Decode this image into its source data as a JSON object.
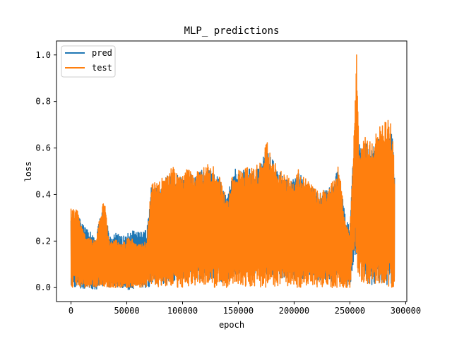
{
  "chart_data": {
    "type": "line",
    "title": "MLP_ predictions",
    "xlabel": "epoch",
    "ylabel": "loss",
    "xlim": [
      -13000,
      301000
    ],
    "ylim": [
      -0.06,
      1.06
    ],
    "x_ticks": [
      0,
      50000,
      100000,
      150000,
      200000,
      250000,
      300000
    ],
    "x_tick_labels": [
      "0",
      "50000",
      "100000",
      "150000",
      "200000",
      "250000",
      "300000"
    ],
    "y_ticks": [
      0.0,
      0.2,
      0.4,
      0.6,
      0.8,
      1.0
    ],
    "y_tick_labels": [
      "0.0",
      "0.2",
      "0.4",
      "0.6",
      "0.8",
      "1.0"
    ],
    "legend_position": "top-left",
    "x_max": 290000,
    "series": [
      {
        "name": "pred",
        "color": "#1f77b4",
        "envelope": [
          [
            0,
            0.0,
            0.33
          ],
          [
            5000,
            0.0,
            0.33
          ],
          [
            12000,
            -0.01,
            0.26
          ],
          [
            18000,
            0.0,
            0.24
          ],
          [
            22000,
            -0.02,
            0.22
          ],
          [
            26000,
            0.0,
            0.3
          ],
          [
            30000,
            0.0,
            0.38
          ],
          [
            34000,
            0.0,
            0.22
          ],
          [
            40000,
            0.0,
            0.24
          ],
          [
            46000,
            0.0,
            0.22
          ],
          [
            52000,
            -0.01,
            0.25
          ],
          [
            58000,
            0.0,
            0.24
          ],
          [
            64000,
            0.0,
            0.24
          ],
          [
            68000,
            0.0,
            0.25
          ],
          [
            72000,
            0.0,
            0.44
          ],
          [
            80000,
            0.0,
            0.44
          ],
          [
            86000,
            0.0,
            0.48
          ],
          [
            92000,
            0.02,
            0.5
          ],
          [
            98000,
            0.02,
            0.47
          ],
          [
            104000,
            0.03,
            0.5
          ],
          [
            110000,
            0.03,
            0.48
          ],
          [
            116000,
            0.03,
            0.5
          ],
          [
            122000,
            0.04,
            0.52
          ],
          [
            128000,
            0.03,
            0.5
          ],
          [
            134000,
            0.03,
            0.46
          ],
          [
            140000,
            0.0,
            0.38
          ],
          [
            146000,
            0.05,
            0.52
          ],
          [
            152000,
            0.05,
            0.5
          ],
          [
            158000,
            0.06,
            0.52
          ],
          [
            164000,
            0.05,
            0.5
          ],
          [
            170000,
            0.06,
            0.54
          ],
          [
            176000,
            0.05,
            0.61
          ],
          [
            180000,
            0.05,
            0.56
          ],
          [
            186000,
            0.04,
            0.5
          ],
          [
            192000,
            0.04,
            0.48
          ],
          [
            198000,
            0.03,
            0.46
          ],
          [
            204000,
            0.04,
            0.5
          ],
          [
            210000,
            0.03,
            0.46
          ],
          [
            216000,
            0.03,
            0.44
          ],
          [
            222000,
            0.03,
            0.4
          ],
          [
            228000,
            0.02,
            0.42
          ],
          [
            234000,
            0.02,
            0.44
          ],
          [
            240000,
            0.02,
            0.52
          ],
          [
            246000,
            0.01,
            0.3
          ],
          [
            250000,
            0.0,
            0.26
          ],
          [
            254000,
            0.14,
            0.7
          ],
          [
            258000,
            0.14,
            0.62
          ],
          [
            264000,
            0.01,
            0.62
          ],
          [
            270000,
            0.01,
            0.6
          ],
          [
            276000,
            0.01,
            0.64
          ],
          [
            282000,
            0.01,
            0.66
          ],
          [
            288000,
            0.02,
            0.68
          ],
          [
            290000,
            0.02,
            0.48
          ]
        ]
      },
      {
        "name": "test",
        "color": "#ff7f0e",
        "envelope": [
          [
            0,
            0.0,
            0.34
          ],
          [
            5000,
            0.0,
            0.34
          ],
          [
            12000,
            0.0,
            0.24
          ],
          [
            18000,
            0.0,
            0.22
          ],
          [
            22000,
            0.0,
            0.2
          ],
          [
            26000,
            0.0,
            0.31
          ],
          [
            30000,
            0.0,
            0.39
          ],
          [
            34000,
            0.0,
            0.2
          ],
          [
            40000,
            0.0,
            0.21
          ],
          [
            46000,
            0.0,
            0.19
          ],
          [
            52000,
            0.0,
            0.22
          ],
          [
            58000,
            0.0,
            0.2
          ],
          [
            64000,
            0.0,
            0.19
          ],
          [
            68000,
            0.0,
            0.2
          ],
          [
            72000,
            0.0,
            0.45
          ],
          [
            80000,
            0.0,
            0.46
          ],
          [
            86000,
            0.0,
            0.5
          ],
          [
            92000,
            0.0,
            0.52
          ],
          [
            98000,
            0.0,
            0.48
          ],
          [
            104000,
            0.0,
            0.52
          ],
          [
            110000,
            0.0,
            0.49
          ],
          [
            116000,
            0.0,
            0.51
          ],
          [
            122000,
            0.0,
            0.53
          ],
          [
            128000,
            0.0,
            0.52
          ],
          [
            134000,
            0.0,
            0.47
          ],
          [
            140000,
            0.0,
            0.38
          ],
          [
            146000,
            0.0,
            0.53
          ],
          [
            152000,
            0.0,
            0.51
          ],
          [
            158000,
            0.0,
            0.53
          ],
          [
            164000,
            0.0,
            0.51
          ],
          [
            170000,
            0.0,
            0.55
          ],
          [
            176000,
            0.0,
            0.63
          ],
          [
            180000,
            0.0,
            0.57
          ],
          [
            186000,
            0.0,
            0.51
          ],
          [
            192000,
            0.0,
            0.49
          ],
          [
            198000,
            0.0,
            0.47
          ],
          [
            204000,
            0.0,
            0.51
          ],
          [
            210000,
            0.0,
            0.47
          ],
          [
            216000,
            0.0,
            0.45
          ],
          [
            222000,
            0.0,
            0.41
          ],
          [
            228000,
            0.0,
            0.43
          ],
          [
            234000,
            0.0,
            0.45
          ],
          [
            240000,
            0.0,
            0.53
          ],
          [
            246000,
            0.0,
            0.28
          ],
          [
            250000,
            0.0,
            0.24
          ],
          [
            254000,
            0.16,
            0.71
          ],
          [
            256000,
            0.14,
            1.0
          ],
          [
            258000,
            0.02,
            0.6
          ],
          [
            264000,
            0.0,
            0.65
          ],
          [
            270000,
            0.0,
            0.62
          ],
          [
            276000,
            0.0,
            0.7
          ],
          [
            282000,
            0.0,
            0.73
          ],
          [
            288000,
            0.0,
            0.7
          ],
          [
            290000,
            0.0,
            0.49
          ]
        ]
      }
    ]
  }
}
